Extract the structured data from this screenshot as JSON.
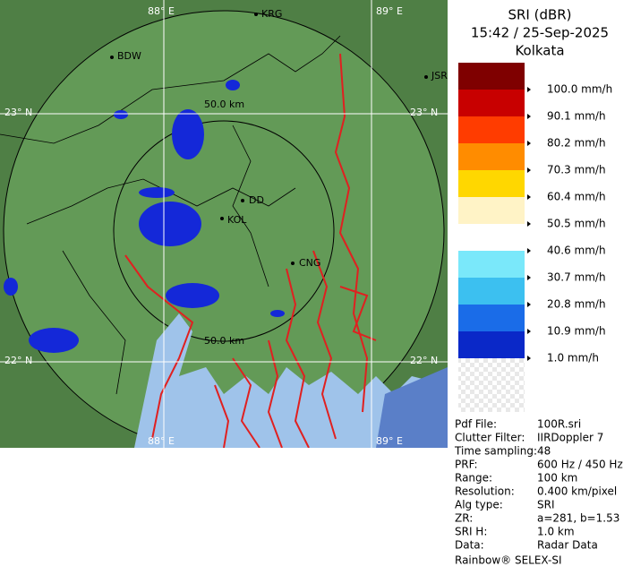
{
  "map": {
    "lon_labels": [
      "88° E",
      "89° E",
      "88° E",
      "89° E"
    ],
    "lat_labels": [
      "23° N",
      "23° N",
      "22° N",
      "22° N"
    ],
    "cities": [
      "KRG",
      "BDW",
      "JSR",
      "DD",
      "KOL",
      "CNG"
    ],
    "ring_labels": [
      "50.0 km",
      "50.0 km"
    ]
  },
  "legend": {
    "title": "SRI (dBR)",
    "time": "15:42 / 25-Sep-2025",
    "site": "Kolkata",
    "scale": [
      "100.0 mm/h",
      "90.1 mm/h",
      "80.2 mm/h",
      "70.3 mm/h",
      "60.4 mm/h",
      "50.5 mm/h",
      "40.6 mm/h",
      "30.7 mm/h",
      "20.8 mm/h",
      "10.9 mm/h",
      "1.0 mm/h"
    ]
  },
  "info": {
    "rows": [
      [
        "Pdf File:",
        "100R.sri"
      ],
      [
        "Clutter Filter:",
        "IIRDoppler 7"
      ],
      [
        "Time sampling:",
        "48"
      ],
      [
        "PRF:",
        "600 Hz / 450 Hz"
      ],
      [
        "Range:",
        "100 km"
      ],
      [
        "Resolution:",
        "0.400 km/pixel"
      ],
      [
        "Alg type:",
        "SRI"
      ],
      [
        "ZR:",
        "a=281, b=1.53"
      ],
      [
        "SRI H:",
        "1.0 km"
      ],
      [
        "Data:",
        "Radar Data"
      ]
    ]
  },
  "footer": "Rainbow® SELEX-SI"
}
